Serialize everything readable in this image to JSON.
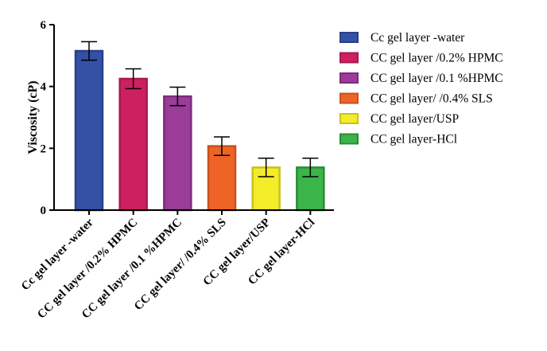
{
  "chart_data": {
    "type": "bar",
    "title": "",
    "xlabel": "",
    "ylabel": "Viscosity (cP)",
    "ylim": [
      0,
      6
    ],
    "yticks": [
      0,
      2,
      4,
      6
    ],
    "grid": false,
    "legend_position": "right",
    "categories": [
      "Cc gel layer -water",
      "CC gel layer /0.2% HPMC",
      "CC gel layer /0.1 %HPMC",
      "CC gel layer/ /0.4% SLS",
      "CC gel layer/USP",
      "CC gel layer-HCl"
    ],
    "legend_labels": [
      "Cc gel layer -water",
      "CC gel layer /0.2% HPMC",
      "CC gel layer /0.1 %HPMC",
      "CC gel layer/ /0.4% SLS",
      "CC gel layer/USP",
      "CC gel layer-HCl"
    ],
    "values": [
      5.15,
      4.25,
      3.68,
      2.07,
      1.38,
      1.38
    ],
    "errors": [
      0.3,
      0.32,
      0.3,
      0.3,
      0.3,
      0.3
    ],
    "fill_colors": [
      "#3451a6",
      "#cc2060",
      "#9a3c98",
      "#ee6426",
      "#f3ec28",
      "#3bb44a"
    ],
    "edge_colors": [
      "#2a3f86",
      "#a81a50",
      "#7d2c7c",
      "#c8501c",
      "#c9c11e",
      "#2a8c36"
    ]
  }
}
